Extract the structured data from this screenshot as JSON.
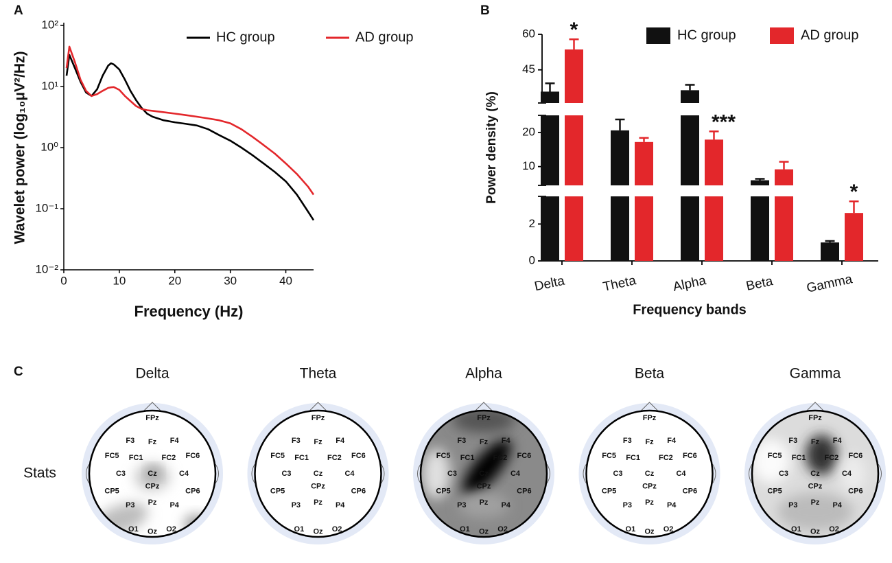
{
  "chart_data": [
    {
      "type": "line",
      "panel": "A",
      "xlabel": "Frequency (Hz)",
      "ylabel": "Wavelet power (log₁₀μV²/Hz)",
      "yscale": "log",
      "legend": "top",
      "x": [
        0.5,
        1,
        2,
        3,
        4,
        5,
        6,
        7,
        8,
        8.5,
        9,
        10,
        11,
        12,
        13,
        14,
        15,
        16,
        18,
        20,
        22,
        24,
        26,
        28,
        30,
        32,
        34,
        36,
        38,
        40,
        42,
        44,
        45
      ],
      "series": [
        {
          "name": "HC group",
          "color": "#000000",
          "values": [
            15,
            33,
            20,
            12,
            8,
            7,
            9,
            15,
            22,
            24,
            23,
            19,
            13,
            8.5,
            6,
            4.5,
            3.6,
            3.2,
            2.8,
            2.6,
            2.45,
            2.3,
            2.0,
            1.6,
            1.3,
            1.0,
            0.75,
            0.55,
            0.4,
            0.28,
            0.17,
            0.09,
            0.065
          ]
        },
        {
          "name": "AD group",
          "color": "#e3272b",
          "values": [
            20,
            45,
            25,
            13,
            8.5,
            7,
            7.5,
            8.5,
            9.5,
            9.7,
            9.8,
            8.8,
            7.0,
            5.8,
            4.8,
            4.3,
            4.1,
            4.0,
            3.8,
            3.6,
            3.4,
            3.2,
            3.0,
            2.8,
            2.5,
            2.0,
            1.5,
            1.1,
            0.8,
            0.55,
            0.37,
            0.23,
            0.17
          ]
        }
      ],
      "xlim": [
        0,
        45
      ],
      "xticks": [
        0,
        10,
        20,
        30,
        40
      ],
      "ylim": [
        0.01,
        100
      ],
      "yticks": [
        {
          "value": 0.01,
          "label": "10⁻²"
        },
        {
          "value": 0.1,
          "label": "10⁻¹"
        },
        {
          "value": 1,
          "label": "10⁰"
        },
        {
          "value": 10,
          "label": "10¹"
        },
        {
          "value": 100,
          "label": "10²"
        }
      ]
    },
    {
      "type": "bar",
      "panel": "B",
      "xlabel": "Frequency bands",
      "ylabel": "Power density (%)",
      "legend": "top-right",
      "categories": [
        "Delta",
        "Theta",
        "Alpha",
        "Beta",
        "Gamma"
      ],
      "series": [
        {
          "name": "HC group",
          "color": "#111111",
          "values": [
            35.8,
            20.6,
            36.4,
            6,
            1.0
          ],
          "errors": [
            3.5,
            3.2,
            2.3,
            0.4,
            0.08
          ]
        },
        {
          "name": "AD group",
          "color": "#e3272b",
          "values": [
            53.6,
            17.2,
            17.9,
            9.2,
            2.6
          ],
          "errors": [
            4.3,
            1.2,
            2.4,
            2.2,
            0.63
          ],
          "annotations": [
            "*",
            null,
            "***",
            null,
            "*"
          ]
        }
      ],
      "y_segments": [
        {
          "ylim": [
            0,
            3.5
          ],
          "yticks": [
            0,
            2
          ]
        },
        {
          "ylim": [
            4.5,
            25
          ],
          "yticks": [
            10,
            20
          ]
        },
        {
          "ylim": [
            31,
            60
          ],
          "yticks": [
            45,
            60
          ]
        }
      ]
    }
  ],
  "panel_c": {
    "panel": "C",
    "row_label": "Stats",
    "maps": [
      "Delta",
      "Theta",
      "Alpha",
      "Beta",
      "Gamma"
    ],
    "electrodes": [
      "FPz",
      "F3",
      "Fz",
      "F4",
      "FC5",
      "FC1",
      "FC2",
      "FC6",
      "C3",
      "Cz",
      "C4",
      "CP5",
      "CPz",
      "CP6",
      "P3",
      "Pz",
      "P4",
      "O1",
      "Oz",
      "O2"
    ]
  }
}
